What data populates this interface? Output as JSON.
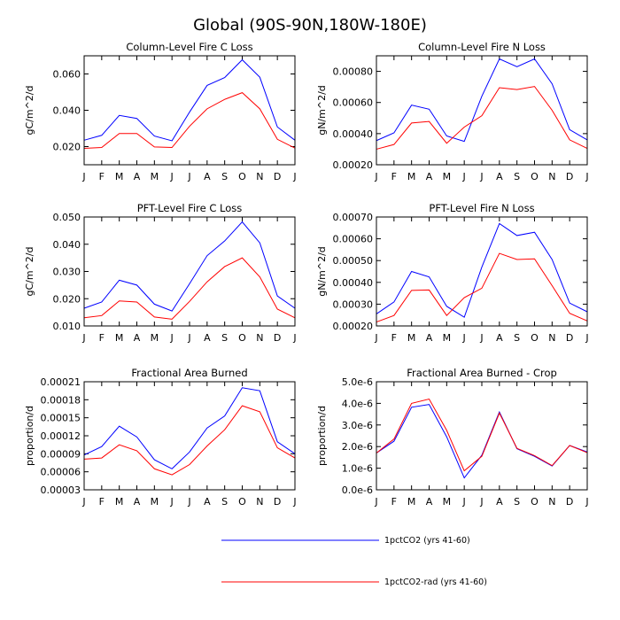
{
  "figure_title": "Global (90S-90N,180W-180E)",
  "legend": [
    {
      "name": "1pctCO2 (yrs 41-60)",
      "color": "#0000ff"
    },
    {
      "name": "1pctCO2-rad (yrs 41-60)",
      "color": "#ff0000"
    }
  ],
  "chart_data": [
    {
      "type": "line",
      "title": "Column-Level Fire C Loss",
      "xlabel": "",
      "ylabel": "gC/m^2/d",
      "categories": [
        "J",
        "F",
        "M",
        "A",
        "M",
        "J",
        "J",
        "A",
        "S",
        "O",
        "N",
        "D",
        "J"
      ],
      "ylim": [
        0.01,
        0.07
      ],
      "yticks": [
        0.02,
        0.04,
        0.06
      ],
      "yticklabels": [
        "0.020",
        "0.040",
        "0.060"
      ],
      "series": [
        {
          "name": "1pctCO2 (yrs 41-60)",
          "color": "#0000ff",
          "values": [
            0.0235,
            0.0262,
            0.0372,
            0.0355,
            0.0258,
            0.0232,
            0.039,
            0.0537,
            0.058,
            0.0678,
            0.0582,
            0.0308,
            0.0235
          ]
        },
        {
          "name": "1pctCO2-rad (yrs 41-60)",
          "color": "#ff0000",
          "values": [
            0.019,
            0.0195,
            0.0272,
            0.0272,
            0.0198,
            0.0195,
            0.0312,
            0.0408,
            0.046,
            0.0497,
            0.0408,
            0.024,
            0.0192
          ]
        }
      ]
    },
    {
      "type": "line",
      "title": "Column-Level Fire N Loss",
      "xlabel": "",
      "ylabel": "gN/m^2/d",
      "categories": [
        "J",
        "F",
        "M",
        "A",
        "M",
        "J",
        "J",
        "A",
        "S",
        "O",
        "N",
        "D",
        "J"
      ],
      "ylim": [
        0.0002,
        0.0009
      ],
      "yticks": [
        0.0002,
        0.0004,
        0.0006,
        0.0008
      ],
      "yticklabels": [
        "0.00020",
        "0.00040",
        "0.00060",
        "0.00080"
      ],
      "series": [
        {
          "name": "1pctCO2 (yrs 41-60)",
          "color": "#0000ff",
          "values": [
            0.000355,
            0.000405,
            0.000583,
            0.000557,
            0.000385,
            0.00035,
            0.00064,
            0.00088,
            0.00083,
            0.00088,
            0.00072,
            0.000425,
            0.00036
          ]
        },
        {
          "name": "1pctCO2-rad (yrs 41-60)",
          "color": "#ff0000",
          "values": [
            0.0003,
            0.00033,
            0.000468,
            0.000478,
            0.000338,
            0.000442,
            0.000515,
            0.000695,
            0.000683,
            0.000703,
            0.00055,
            0.00036,
            0.000305
          ]
        }
      ]
    },
    {
      "type": "line",
      "title": "PFT-Level Fire C Loss",
      "xlabel": "",
      "ylabel": "gC/m^2/d",
      "categories": [
        "J",
        "F",
        "M",
        "A",
        "M",
        "J",
        "J",
        "A",
        "S",
        "O",
        "N",
        "D",
        "J"
      ],
      "ylim": [
        0.01,
        0.05
      ],
      "yticks": [
        0.01,
        0.02,
        0.03,
        0.04,
        0.05
      ],
      "yticklabels": [
        "0.010",
        "0.020",
        "0.030",
        "0.040",
        "0.050"
      ],
      "series": [
        {
          "name": "1pctCO2 (yrs 41-60)",
          "color": "#0000ff",
          "values": [
            0.0165,
            0.0188,
            0.0268,
            0.025,
            0.018,
            0.0155,
            0.0255,
            0.0358,
            0.0412,
            0.0482,
            0.0405,
            0.021,
            0.0165
          ]
        },
        {
          "name": "1pctCO2-rad (yrs 41-60)",
          "color": "#ff0000",
          "values": [
            0.013,
            0.0138,
            0.0192,
            0.0188,
            0.0133,
            0.0125,
            0.019,
            0.0262,
            0.0318,
            0.035,
            0.028,
            0.0162,
            0.013
          ]
        }
      ]
    },
    {
      "type": "line",
      "title": "PFT-Level Fire N Loss",
      "xlabel": "",
      "ylabel": "gN/m^2/d",
      "categories": [
        "J",
        "F",
        "M",
        "A",
        "M",
        "J",
        "J",
        "A",
        "S",
        "O",
        "N",
        "D",
        "J"
      ],
      "ylim": [
        0.0002,
        0.0007
      ],
      "yticks": [
        0.0002,
        0.0003,
        0.0004,
        0.0005,
        0.0006,
        0.0007
      ],
      "yticklabels": [
        "0.00020",
        "0.00030",
        "0.00040",
        "0.00050",
        "0.00060",
        "0.00070"
      ],
      "series": [
        {
          "name": "1pctCO2 (yrs 41-60)",
          "color": "#0000ff",
          "values": [
            0.000255,
            0.00031,
            0.00045,
            0.000425,
            0.00029,
            0.00024,
            0.00047,
            0.00067,
            0.000615,
            0.00063,
            0.000505,
            0.000305,
            0.000265
          ]
        },
        {
          "name": "1pctCO2-rad (yrs 41-60)",
          "color": "#ff0000",
          "values": [
            0.000218,
            0.000248,
            0.000363,
            0.000365,
            0.000248,
            0.00033,
            0.000373,
            0.000533,
            0.000505,
            0.000508,
            0.000385,
            0.000258,
            0.000223
          ]
        }
      ]
    },
    {
      "type": "line",
      "title": "Fractional Area Burned",
      "xlabel": "",
      "ylabel": "proportion/d",
      "categories": [
        "J",
        "F",
        "M",
        "A",
        "M",
        "J",
        "J",
        "A",
        "S",
        "O",
        "N",
        "D",
        "J"
      ],
      "ylim": [
        3e-05,
        0.00021
      ],
      "yticks": [
        3e-05,
        6e-05,
        9e-05,
        0.00012,
        0.00015,
        0.00018,
        0.00021
      ],
      "yticklabels": [
        "0.00003",
        "0.00006",
        "0.00009",
        "0.00012",
        "0.00015",
        "0.00018",
        "0.00021"
      ],
      "series": [
        {
          "name": "1pctCO2 (yrs 41-60)",
          "color": "#0000ff",
          "values": [
            8.8e-05,
            0.000102,
            0.000136,
            0.000118,
            8e-05,
            6.5e-05,
            9.3e-05,
            0.000133,
            0.000153,
            0.0002,
            0.000195,
            0.00011,
            9e-05
          ]
        },
        {
          "name": "1pctCO2-rad (yrs 41-60)",
          "color": "#ff0000",
          "values": [
            8.1e-05,
            8.3e-05,
            0.000105,
            9.5e-05,
            6.5e-05,
            5.5e-05,
            7.2e-05,
            0.000103,
            0.00013,
            0.00017,
            0.00016,
            0.0001,
            8.3e-05
          ]
        }
      ]
    },
    {
      "type": "line",
      "title": "Fractional Area Burned - Crop",
      "xlabel": "",
      "ylabel": "proportion/d",
      "categories": [
        "J",
        "F",
        "M",
        "A",
        "M",
        "J",
        "J",
        "A",
        "S",
        "O",
        "N",
        "D",
        "J"
      ],
      "ylim": [
        0.0,
        5e-06
      ],
      "yticks": [
        0.0,
        1e-06,
        2e-06,
        3e-06,
        4e-06,
        5e-06
      ],
      "yticklabels": [
        "0.0e-6",
        "1.0e-6",
        "2.0e-6",
        "3.0e-6",
        "4.0e-6",
        "5.0e-6"
      ],
      "series": [
        {
          "name": "1pctCO2 (yrs 41-60)",
          "color": "#0000ff",
          "values": [
            1.7e-06,
            2.25e-06,
            3.82e-06,
            3.95e-06,
            2.45e-06,
            5.5e-07,
            1.6e-06,
            3.6e-06,
            1.9e-06,
            1.55e-06,
            1.1e-06,
            2.05e-06,
            1.75e-06
          ]
        },
        {
          "name": "1pctCO2-rad (yrs 41-60)",
          "color": "#ff0000",
          "values": [
            1.7e-06,
            2.35e-06,
            4e-06,
            4.2e-06,
            2.75e-06,
            8.8e-07,
            1.55e-06,
            3.55e-06,
            1.92e-06,
            1.58e-06,
            1.12e-06,
            2.05e-06,
            1.72e-06
          ]
        }
      ]
    }
  ]
}
